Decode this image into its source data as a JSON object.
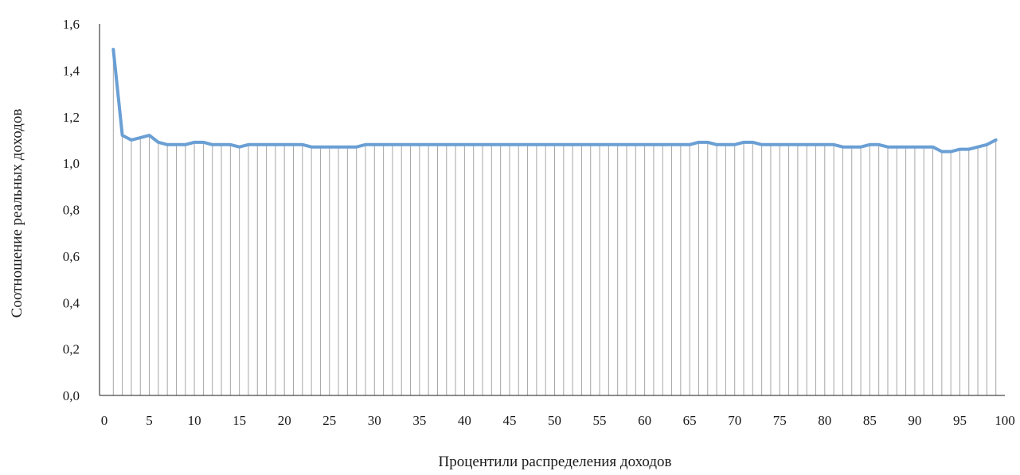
{
  "chart_data": {
    "type": "line",
    "title": "",
    "xlabel": "Процентили распределения доходов",
    "ylabel": "Соотношение реальных доходов",
    "x_ticks": [
      "0",
      "5",
      "10",
      "15",
      "20",
      "25",
      "30",
      "35",
      "40",
      "45",
      "50",
      "55",
      "60",
      "65",
      "70",
      "75",
      "80",
      "85",
      "90",
      "95",
      "100"
    ],
    "y_ticks": [
      "0,0",
      "0,2",
      "0,4",
      "0,6",
      "0,8",
      "1,0",
      "1,2",
      "1,4",
      "1,6"
    ],
    "xlim": [
      0,
      100
    ],
    "ylim": [
      0,
      1.6
    ],
    "drop_lines": true,
    "grid": false,
    "legend": "none",
    "series": [
      {
        "color": "#6a9fd4",
        "x": [
          1,
          2,
          3,
          4,
          5,
          6,
          7,
          8,
          9,
          10,
          11,
          12,
          13,
          14,
          15,
          16,
          17,
          18,
          19,
          20,
          21,
          22,
          23,
          24,
          25,
          26,
          27,
          28,
          29,
          30,
          31,
          32,
          33,
          34,
          35,
          36,
          37,
          38,
          39,
          40,
          41,
          42,
          43,
          44,
          45,
          46,
          47,
          48,
          49,
          50,
          51,
          52,
          53,
          54,
          55,
          56,
          57,
          58,
          59,
          60,
          61,
          62,
          63,
          64,
          65,
          66,
          67,
          68,
          69,
          70,
          71,
          72,
          73,
          74,
          75,
          76,
          77,
          78,
          79,
          80,
          81,
          82,
          83,
          84,
          85,
          86,
          87,
          88,
          89,
          90,
          91,
          92,
          93,
          94,
          95,
          96,
          97,
          98,
          99
        ],
        "values": [
          1.49,
          1.12,
          1.1,
          1.11,
          1.12,
          1.09,
          1.08,
          1.08,
          1.08,
          1.09,
          1.09,
          1.08,
          1.08,
          1.08,
          1.07,
          1.08,
          1.08,
          1.08,
          1.08,
          1.08,
          1.08,
          1.08,
          1.07,
          1.07,
          1.07,
          1.07,
          1.07,
          1.07,
          1.08,
          1.08,
          1.08,
          1.08,
          1.08,
          1.08,
          1.08,
          1.08,
          1.08,
          1.08,
          1.08,
          1.08,
          1.08,
          1.08,
          1.08,
          1.08,
          1.08,
          1.08,
          1.08,
          1.08,
          1.08,
          1.08,
          1.08,
          1.08,
          1.08,
          1.08,
          1.08,
          1.08,
          1.08,
          1.08,
          1.08,
          1.08,
          1.08,
          1.08,
          1.08,
          1.08,
          1.08,
          1.09,
          1.09,
          1.08,
          1.08,
          1.08,
          1.09,
          1.09,
          1.08,
          1.08,
          1.08,
          1.08,
          1.08,
          1.08,
          1.08,
          1.08,
          1.08,
          1.07,
          1.07,
          1.07,
          1.08,
          1.08,
          1.07,
          1.07,
          1.07,
          1.07,
          1.07,
          1.07,
          1.05,
          1.05,
          1.06,
          1.06,
          1.07,
          1.08,
          1.1
        ]
      }
    ]
  }
}
